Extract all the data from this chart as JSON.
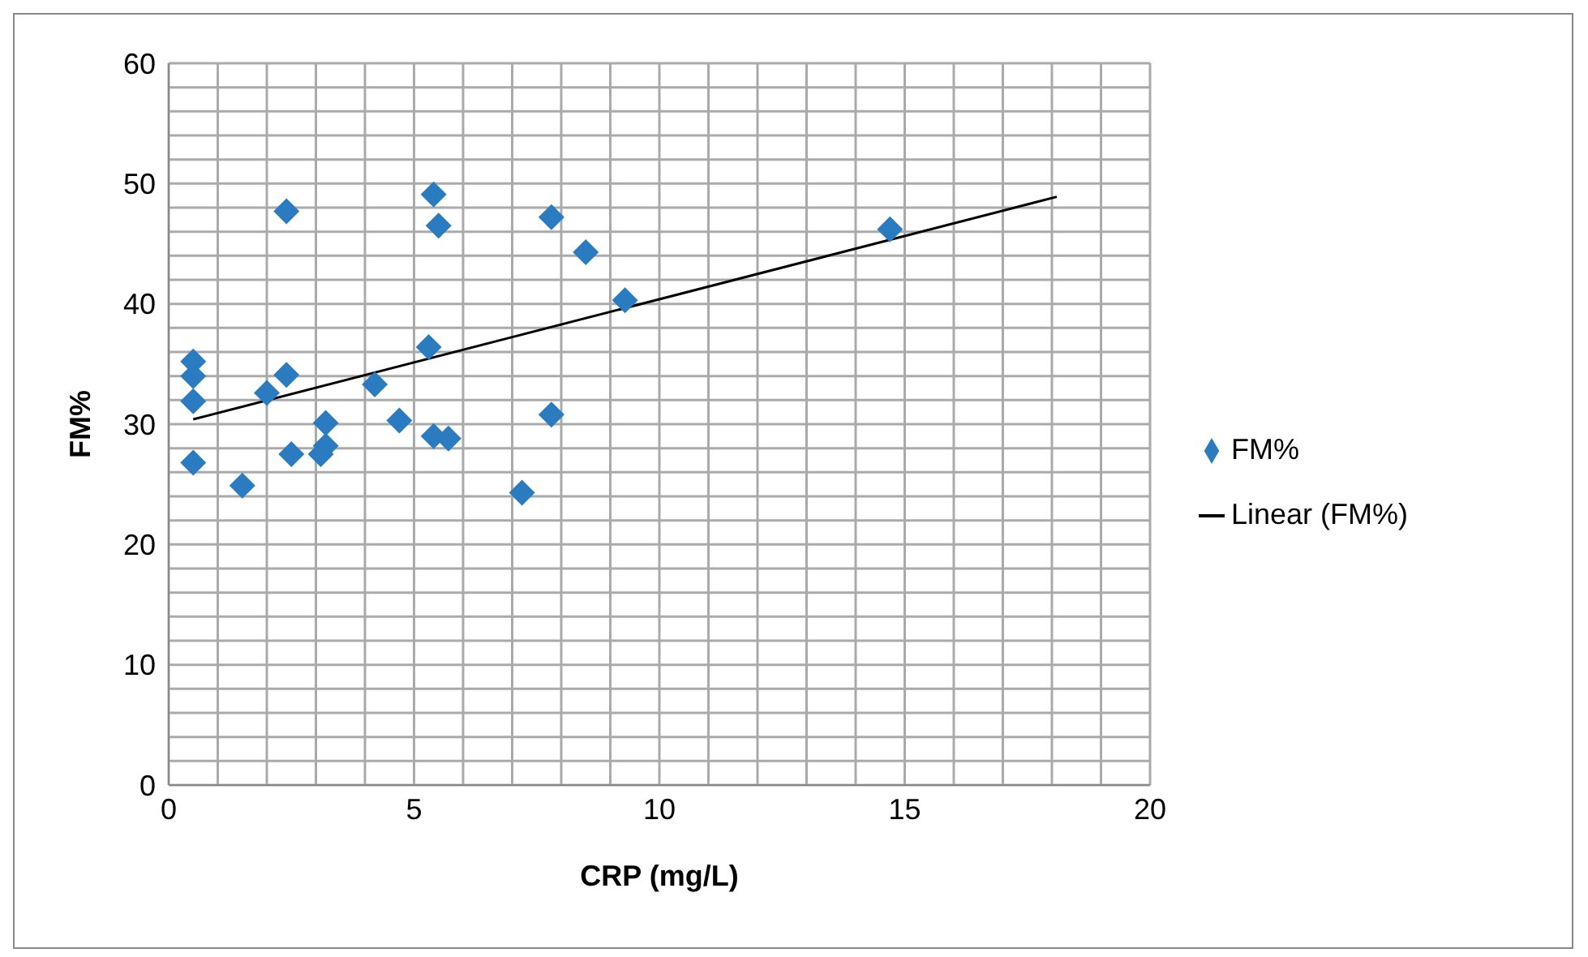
{
  "chart_data": {
    "type": "scatter",
    "xlabel": "CRP (mg/L)",
    "ylabel": "FM%",
    "xlim": [
      0,
      20
    ],
    "ylim": [
      0,
      60
    ],
    "xticks": [
      0,
      {
        "value": 1,
        "label": null
      },
      {
        "value": 2,
        "label": null
      },
      {
        "value": 3,
        "label": null
      },
      {
        "value": 4,
        "label": null
      },
      5,
      {
        "value": 6,
        "label": null
      },
      {
        "value": 7,
        "label": null
      },
      {
        "value": 8,
        "label": null
      },
      {
        "value": 9,
        "label": null
      },
      10,
      {
        "value": 11,
        "label": null
      },
      {
        "value": 12,
        "label": null
      },
      {
        "value": 13,
        "label": null
      },
      {
        "value": 14,
        "label": null
      },
      15,
      {
        "value": 16,
        "label": null
      },
      {
        "value": 17,
        "label": null
      },
      {
        "value": 18,
        "label": null
      },
      {
        "value": 19,
        "label": null
      },
      20
    ],
    "yticks": [
      0,
      {
        "value": 2,
        "label": null
      },
      {
        "value": 4,
        "label": null
      },
      {
        "value": 6,
        "label": null
      },
      {
        "value": 8,
        "label": null
      },
      10,
      {
        "value": 12,
        "label": null
      },
      {
        "value": 14,
        "label": null
      },
      {
        "value": 16,
        "label": null
      },
      {
        "value": 18,
        "label": null
      },
      20,
      {
        "value": 22,
        "label": null
      },
      {
        "value": 24,
        "label": null
      },
      {
        "value": 26,
        "label": null
      },
      {
        "value": 28,
        "label": null
      },
      30,
      {
        "value": 32,
        "label": null
      },
      {
        "value": 34,
        "label": null
      },
      {
        "value": 36,
        "label": null
      },
      {
        "value": 38,
        "label": null
      },
      40,
      {
        "value": 42,
        "label": null
      },
      {
        "value": 44,
        "label": null
      },
      {
        "value": 46,
        "label": null
      },
      {
        "value": 48,
        "label": null
      },
      50,
      {
        "value": 52,
        "label": null
      },
      {
        "value": 54,
        "label": null
      },
      {
        "value": 56,
        "label": null
      },
      {
        "value": 58,
        "label": null
      },
      60
    ],
    "grid": true,
    "legend": "right",
    "marker": "diamond",
    "series": [
      {
        "name": "FM%",
        "type": "scatter",
        "color": "#2a7bbf",
        "x": [
          0.5,
          0.5,
          0.5,
          0.5,
          1.5,
          2.0,
          2.4,
          2.4,
          2.5,
          3.1,
          3.2,
          3.2,
          4.2,
          4.7,
          5.3,
          5.4,
          5.5,
          5.4,
          5.7,
          7.2,
          7.8,
          7.8,
          8.5,
          9.3,
          14.7
        ],
        "values": [
          35.2,
          34.0,
          31.9,
          26.8,
          24.9,
          32.6,
          47.7,
          34.1,
          27.5,
          27.5,
          28.2,
          30.1,
          33.3,
          30.3,
          36.4,
          49.1,
          46.5,
          29.0,
          28.8,
          24.3,
          47.2,
          30.8,
          44.3,
          40.3,
          46.2
        ]
      },
      {
        "name": "Linear (FM%)",
        "type": "line",
        "color": "#000000",
        "marker": "none",
        "line_style": "solid",
        "x": [
          0.5,
          18.1
        ],
        "values": [
          30.4,
          48.9
        ]
      }
    ]
  }
}
